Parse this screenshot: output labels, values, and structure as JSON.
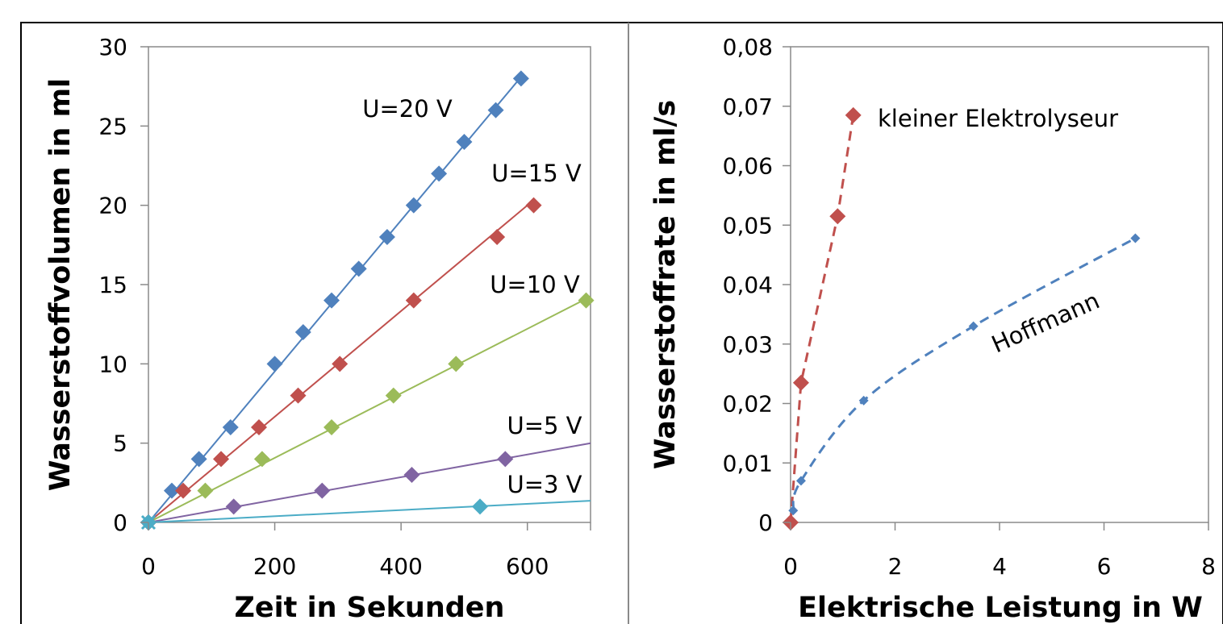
{
  "chart_data": [
    {
      "type": "scatter",
      "title": "",
      "xlabel": "Zeit in Sekunden",
      "ylabel": "Wasserstoffvolumen in ml",
      "xlim": [
        0,
        700
      ],
      "ylim": [
        0,
        30
      ],
      "xticks": [
        "0",
        "200",
        "400",
        "600"
      ],
      "yticks": [
        "0",
        "5",
        "10",
        "15",
        "20",
        "25",
        "30"
      ],
      "grid": false,
      "legend": "none",
      "series": [
        {
          "name": "U=20 V",
          "color": "#4f81bd",
          "x": [
            0,
            37,
            80,
            130,
            200,
            245,
            290,
            333,
            378,
            420,
            460,
            500,
            550,
            590
          ],
          "y": [
            0,
            2,
            4,
            6,
            10,
            12,
            14,
            16,
            18,
            20,
            22,
            24,
            26,
            28
          ],
          "fit_slope": 0.04762
        },
        {
          "name": "U=15 V",
          "color": "#c0504d",
          "x": [
            0,
            55,
            115,
            175,
            237,
            303,
            420,
            552,
            610
          ],
          "y": [
            0,
            2,
            4,
            6,
            8,
            10,
            14,
            18,
            20
          ],
          "fit_slope": 0.03333
        },
        {
          "name": "U=10 V",
          "color": "#9bbb59",
          "x": [
            0,
            90,
            180,
            290,
            388,
            487,
            693
          ],
          "y": [
            0,
            2,
            4,
            6,
            8,
            10,
            14
          ],
          "fit_slope": 0.02035
        },
        {
          "name": "U=5 V",
          "color": "#8064a2",
          "x": [
            0,
            135,
            275,
            417,
            565
          ],
          "y": [
            0,
            1,
            2,
            3,
            4
          ],
          "fit_slope": 0.00714
        },
        {
          "name": "U=3 V",
          "color": "#4bacc6",
          "x": [
            0,
            525
          ],
          "y": [
            0,
            1
          ],
          "fit_slope": 0.00195
        }
      ]
    },
    {
      "type": "line",
      "title": "",
      "xlabel": "Elektrische Leistung in W",
      "ylabel": "Wasserstoffrate in ml/s",
      "xlim": [
        0,
        8
      ],
      "ylim": [
        0,
        0.08
      ],
      "xticks": [
        "0",
        "2",
        "4",
        "6",
        "8"
      ],
      "yticks": [
        "0",
        "0,01",
        "0,02",
        "0,03",
        "0,04",
        "0,05",
        "0,06",
        "0,07",
        "0,08"
      ],
      "grid": false,
      "legend": "none",
      "series": [
        {
          "name": "kleiner Elektrolyseur",
          "color": "#c0504d",
          "line_style": "dashed",
          "x": [
            0,
            0.2,
            0.9,
            1.2
          ],
          "y": [
            0,
            0.0235,
            0.0515,
            0.0685
          ]
        },
        {
          "name": "Hoffmann",
          "color": "#4f81bd",
          "line_style": "dashed",
          "x": [
            0.05,
            0.2,
            1.4,
            3.5,
            6.6
          ],
          "y": [
            0.002,
            0.007,
            0.0205,
            0.033,
            0.0478
          ]
        }
      ]
    }
  ]
}
